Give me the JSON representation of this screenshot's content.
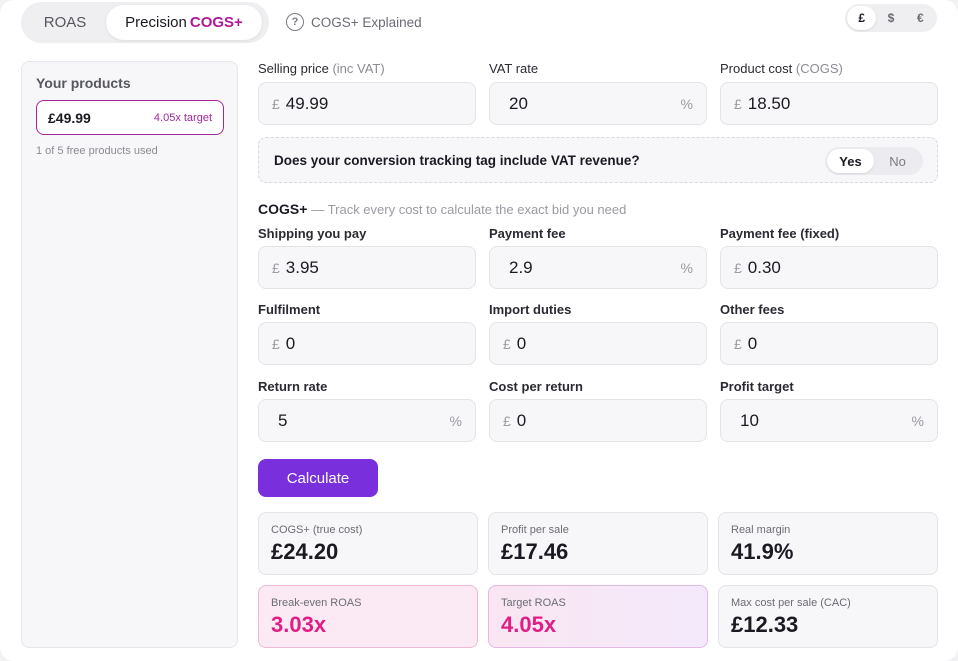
{
  "mode": {
    "roas_label": "ROAS",
    "precision_label": "Precision",
    "precision_accent": "COGS+"
  },
  "help": {
    "icon": "question-circle-icon",
    "label": "COGS+ Explained"
  },
  "currency": {
    "options": [
      "£",
      "$",
      "€"
    ],
    "selected": "£"
  },
  "sidebar": {
    "title": "Your products",
    "product": {
      "price": "£49.99",
      "target": "4.05x target"
    },
    "note": "1 of 5 free products used"
  },
  "inputs": {
    "selling_price": {
      "label": "Selling price",
      "label_muted": "(inc VAT)",
      "prefix": "£",
      "value": "49.99"
    },
    "vat_rate": {
      "label": "VAT rate",
      "value": "20",
      "suffix": "%"
    },
    "product_cost": {
      "label": "Product cost",
      "label_muted": "(COGS)",
      "prefix": "£",
      "value": "18.50"
    }
  },
  "vat_question": {
    "text": "Does your conversion tracking tag include VAT revenue?",
    "yes": "Yes",
    "no": "No",
    "selected": "Yes"
  },
  "cogs_section": {
    "title": "COGS+",
    "subtitle": "— Track every cost to calculate the exact bid you need"
  },
  "cogs_fields": {
    "shipping": {
      "label": "Shipping you pay",
      "prefix": "£",
      "value": "3.95"
    },
    "payment_fee": {
      "label": "Payment fee",
      "value": "2.9",
      "suffix": "%"
    },
    "payment_fee_fixed": {
      "label": "Payment fee (fixed)",
      "prefix": "£",
      "value": "0.30"
    },
    "fulfilment": {
      "label": "Fulfilment",
      "prefix": "£",
      "value": "0"
    },
    "import_duties": {
      "label": "Import duties",
      "prefix": "£",
      "value": "0"
    },
    "other_fees": {
      "label": "Other fees",
      "prefix": "£",
      "value": "0"
    },
    "return_rate": {
      "label": "Return rate",
      "value": "5",
      "suffix": "%"
    },
    "cost_per_return": {
      "label": "Cost per return",
      "prefix": "£",
      "value": "0"
    },
    "profit_target": {
      "label": "Profit target",
      "value": "10",
      "suffix": "%"
    }
  },
  "calculate_label": "Calculate",
  "results": {
    "cogs_true": {
      "label": "COGS+ (true cost)",
      "value": "£24.20"
    },
    "profit_per_sale": {
      "label": "Profit per sale",
      "value": "£17.46"
    },
    "real_margin": {
      "label": "Real margin",
      "value": "41.9%"
    },
    "break_even_roas": {
      "label": "Break-even ROAS",
      "value": "3.03x"
    },
    "target_roas": {
      "label": "Target ROAS",
      "value": "4.05x"
    },
    "max_cac": {
      "label": "Max cost per sale (CAC)",
      "value": "£12.33"
    }
  },
  "colors": {
    "accent": "#7a2fdc",
    "brand_pink": "#e01e85",
    "brand_magenta": "#b0189a"
  }
}
